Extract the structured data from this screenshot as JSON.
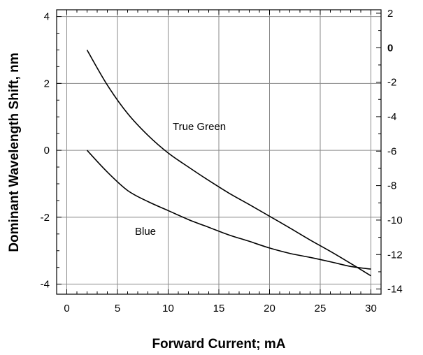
{
  "chart_data": {
    "type": "line",
    "title": "",
    "xlabel": "Forward Current; mA",
    "ylabel": "Dominant Wavelength Shift, nm",
    "xlim": [
      -1,
      31
    ],
    "ylim": [
      -4.3,
      4.2
    ],
    "x_ticks": [
      0,
      5,
      10,
      15,
      20,
      25,
      30
    ],
    "y_ticks": [
      -4,
      -2,
      0,
      2,
      4
    ],
    "y2lim": [
      -14.3,
      2.2
    ],
    "y2_ticks": [
      -14,
      -12,
      -10,
      -8,
      -6,
      -4,
      -2,
      0,
      2
    ],
    "y2_tick_labels": [
      "-14",
      "-12",
      "-10",
      "-8",
      "-6",
      "-4",
      "-2",
      "0",
      "2"
    ],
    "grid": true,
    "annotations": [
      "True Green",
      "Blue"
    ],
    "series": [
      {
        "name": "True Green",
        "x": [
          2,
          4,
          6,
          8,
          10,
          12,
          14,
          16,
          18,
          20,
          22,
          24,
          26,
          28,
          30
        ],
        "y": [
          3.0,
          1.95,
          1.1,
          0.45,
          -0.08,
          -0.5,
          -0.9,
          -1.28,
          -1.62,
          -1.97,
          -2.32,
          -2.68,
          -3.02,
          -3.38,
          -3.75
        ]
      },
      {
        "name": "Blue",
        "x": [
          2,
          4,
          6,
          8,
          10,
          12,
          14,
          16,
          18,
          20,
          22,
          24,
          26,
          28,
          30
        ],
        "y": [
          0.0,
          -0.65,
          -1.2,
          -1.53,
          -1.8,
          -2.07,
          -2.3,
          -2.53,
          -2.72,
          -2.92,
          -3.08,
          -3.2,
          -3.33,
          -3.47,
          -3.55
        ]
      }
    ]
  }
}
